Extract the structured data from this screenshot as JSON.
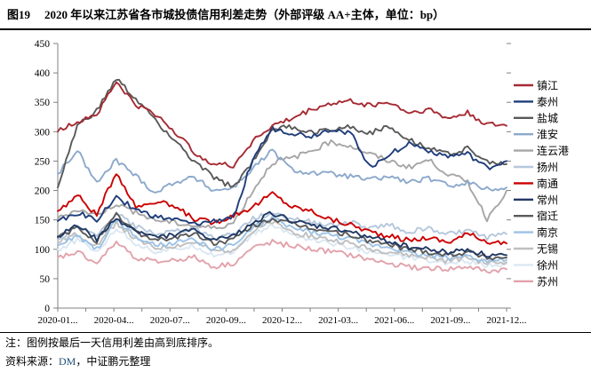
{
  "figure": {
    "label": "图19",
    "title": "2020 年以来江苏省各市城投债信用利差走势（外部评级 AA+主体，单位：bp）"
  },
  "notes": {
    "note": "注：图例按最后一天信用利差由高到底排序。",
    "source_prefix": "资料来源：",
    "source_dm": "DM",
    "source_rest": "，中证鹏元整理"
  },
  "colors": {
    "axis": "#808080",
    "tick": "#808080",
    "link_blue": "#1F4E79"
  },
  "chart_data": {
    "type": "line",
    "title": "2020年以来江苏省各市城投债信用利差走势（外部评级AA+主体，单位：bp）",
    "xlabel": "",
    "ylabel": "",
    "ylim": [
      0,
      450
    ],
    "y_ticks": [
      0,
      50,
      100,
      150,
      200,
      250,
      300,
      350,
      400,
      450
    ],
    "grid": false,
    "legend_position": "right",
    "legend_note": "legend sorted by last-day spread, high to low",
    "x": [
      "2020-01",
      "2020-02",
      "2020-03",
      "2020-04",
      "2020-05",
      "2020-06",
      "2020-07",
      "2020-08",
      "2020-09",
      "2020-10",
      "2020-11",
      "2020-12",
      "2021-01",
      "2021-02",
      "2021-03",
      "2021-04",
      "2021-05",
      "2021-06",
      "2021-07",
      "2021-08",
      "2021-09",
      "2021-10",
      "2021-11",
      "2021-12"
    ],
    "x_tick_labels": [
      "2020-01...",
      "2020-04...",
      "2020-07...",
      "2020-09...",
      "2020-12...",
      "2021-03...",
      "2021-06...",
      "2021-09...",
      "2021-12..."
    ],
    "series": [
      {
        "name": "镇江",
        "color": "#A62A33",
        "values": [
          300,
          318,
          330,
          385,
          345,
          330,
          300,
          265,
          245,
          242,
          285,
          310,
          322,
          338,
          348,
          352,
          345,
          350,
          332,
          338,
          322,
          332,
          312,
          310
        ]
      },
      {
        "name": "泰州",
        "color": "#1F3D7A",
        "values": [
          148,
          162,
          150,
          188,
          168,
          155,
          150,
          142,
          148,
          155,
          255,
          305,
          298,
          292,
          305,
          298,
          240,
          262,
          280,
          268,
          258,
          262,
          238,
          250
        ]
      },
      {
        "name": "盐城",
        "color": "#595959",
        "values": [
          205,
          310,
          335,
          390,
          355,
          320,
          285,
          248,
          222,
          205,
          250,
          305,
          308,
          298,
          305,
          308,
          298,
          308,
          288,
          272,
          262,
          272,
          248,
          245
        ]
      },
      {
        "name": "淮安",
        "color": "#8CA9CC",
        "values": [
          228,
          268,
          212,
          252,
          225,
          196,
          215,
          222,
          200,
          205,
          238,
          268,
          235,
          230,
          228,
          224,
          218,
          224,
          214,
          220,
          208,
          214,
          202,
          205
        ]
      },
      {
        "name": "连云港",
        "color": "#A6A6A6",
        "values": [
          152,
          168,
          158,
          178,
          162,
          150,
          145,
          140,
          136,
          145,
          200,
          248,
          255,
          268,
          282,
          276,
          262,
          250,
          240,
          252,
          228,
          215,
          152,
          200
        ]
      },
      {
        "name": "扬州",
        "color": "#B5C7DC",
        "values": [
          115,
          138,
          122,
          162,
          138,
          126,
          130,
          136,
          120,
          126,
          152,
          162,
          152,
          146,
          142,
          146,
          136,
          142,
          130,
          136,
          126,
          132,
          120,
          126
        ]
      },
      {
        "name": "南通",
        "color": "#CC0000",
        "values": [
          165,
          192,
          158,
          232,
          172,
          182,
          172,
          152,
          145,
          158,
          172,
          195,
          172,
          165,
          150,
          142,
          130,
          122,
          115,
          120,
          112,
          126,
          114,
          110
        ]
      },
      {
        "name": "常州",
        "color": "#203864",
        "values": [
          122,
          142,
          116,
          152,
          132,
          120,
          126,
          132,
          115,
          122,
          146,
          162,
          148,
          140,
          136,
          130,
          120,
          114,
          104,
          100,
          95,
          100,
          90,
          90
        ]
      },
      {
        "name": "宿迁",
        "color": "#5A5A5A",
        "values": [
          120,
          136,
          114,
          158,
          130,
          116,
          120,
          126,
          110,
          116,
          140,
          152,
          142,
          136,
          130,
          124,
          114,
          108,
          100,
          96,
          90,
          96,
          86,
          86
        ]
      },
      {
        "name": "南京",
        "color": "#9CC2E5",
        "values": [
          106,
          122,
          100,
          150,
          120,
          106,
          110,
          116,
          100,
          106,
          136,
          152,
          136,
          130,
          124,
          118,
          108,
          104,
          94,
          90,
          86,
          90,
          80,
          82
        ]
      },
      {
        "name": "无锡",
        "color": "#BFBFBF",
        "values": [
          112,
          126,
          106,
          146,
          116,
          102,
          106,
          112,
          96,
          100,
          130,
          146,
          130,
          122,
          116,
          110,
          100,
          96,
          90,
          86,
          80,
          86,
          76,
          78
        ]
      },
      {
        "name": "徐州",
        "color": "#DAE7F3",
        "values": [
          100,
          116,
          96,
          136,
          110,
          96,
          100,
          106,
          90,
          96,
          126,
          140,
          126,
          116,
          110,
          104,
          96,
          90,
          86,
          80,
          76,
          80,
          72,
          75
        ]
      },
      {
        "name": "苏州",
        "color": "#E2A2AB",
        "values": [
          86,
          96,
          76,
          112,
          86,
          78,
          82,
          86,
          70,
          76,
          102,
          112,
          106,
          100,
          96,
          90,
          82,
          76,
          70,
          68,
          66,
          70,
          62,
          66
        ]
      }
    ]
  }
}
